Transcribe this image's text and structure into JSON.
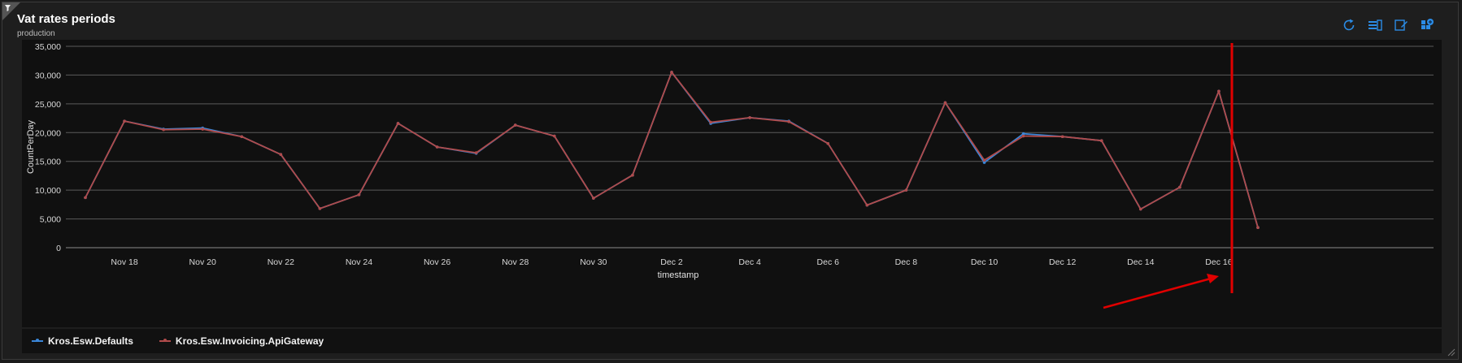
{
  "panel": {
    "title": "Vat rates periods",
    "subtitle": "production"
  },
  "toolbar": {
    "icons": [
      "refresh-icon",
      "query-icon",
      "edit-icon",
      "dashboard-pin-icon"
    ]
  },
  "colors": {
    "series_blue": "#3a86d8",
    "series_red": "#b04b4b",
    "annotation_red": "#e00000",
    "accent": "#2b8ce6"
  },
  "chart_data": {
    "type": "line",
    "xlabel": "timestamp",
    "ylabel": "CountPerDay",
    "ylim": [
      0,
      35000
    ],
    "yticks": [
      0,
      5000,
      10000,
      15000,
      20000,
      25000,
      30000,
      35000
    ],
    "ytick_labels": [
      "0",
      "5,000",
      "10,000",
      "15,000",
      "20,000",
      "25,000",
      "30,000",
      "35,000"
    ],
    "xtick_labels": [
      "Nov 18",
      "Nov 20",
      "Nov 22",
      "Nov 24",
      "Nov 26",
      "Nov 28",
      "Nov 30",
      "Dec 2",
      "Dec 4",
      "Dec 6",
      "Dec 8",
      "Dec 10",
      "Dec 12",
      "Dec 14",
      "Dec 16"
    ],
    "x": [
      "Nov 17",
      "Nov 18",
      "Nov 19",
      "Nov 20",
      "Nov 21",
      "Nov 22",
      "Nov 23",
      "Nov 24",
      "Nov 25",
      "Nov 26",
      "Nov 27",
      "Nov 28",
      "Nov 29",
      "Nov 30",
      "Dec 1",
      "Dec 2",
      "Dec 3",
      "Dec 4",
      "Dec 5",
      "Dec 6",
      "Dec 7",
      "Dec 8",
      "Dec 9",
      "Dec 10",
      "Dec 11",
      "Dec 12",
      "Dec 13",
      "Dec 14",
      "Dec 15",
      "Dec 16",
      "Dec 17"
    ],
    "series": [
      {
        "name": "Kros.Esw.Defaults",
        "values": [
          8700,
          22000,
          20600,
          20800,
          19300,
          16200,
          6800,
          9200,
          21600,
          17500,
          16400,
          21300,
          19400,
          8600,
          12600,
          30500,
          21600,
          22600,
          22000,
          18100,
          7400,
          10000,
          25200,
          14800,
          19800,
          19300,
          18600,
          6700,
          10500,
          27200,
          3500
        ]
      },
      {
        "name": "Kros.Esw.Invoicing.ApiGateway",
        "values": [
          8700,
          22000,
          20500,
          20600,
          19300,
          16200,
          6800,
          9200,
          21600,
          17500,
          16500,
          21300,
          19400,
          8600,
          12600,
          30500,
          21800,
          22600,
          21900,
          18100,
          7400,
          10000,
          25200,
          15200,
          19400,
          19300,
          18600,
          6700,
          10500,
          27200,
          3500
        ]
      }
    ],
    "legend_position": "bottom",
    "grid": true
  },
  "legend": {
    "items": [
      "Kros.Esw.Defaults",
      "Kros.Esw.Invoicing.ApiGateway"
    ]
  }
}
